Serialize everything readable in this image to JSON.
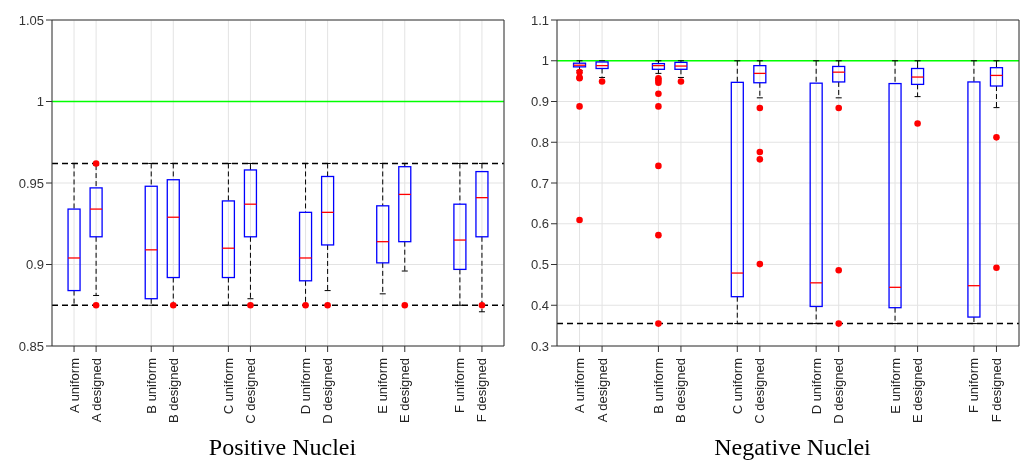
{
  "chart_data": [
    {
      "type": "box",
      "xlabel": "Positive Nuclei",
      "color": "#0000ff",
      "grid": true,
      "ylim": [
        0.85,
        1.05
      ],
      "yticks": [
        0.85,
        0.9,
        0.95,
        1,
        1.05
      ],
      "categories": [
        "A uniform",
        "A designed",
        "B uniform",
        "B designed",
        "C uniform",
        "C designed",
        "D uniform",
        "D designed",
        "E uniform",
        "E designed",
        "F uniform",
        "F designed"
      ],
      "boxes": [
        {
          "low": 0.875,
          "q1": 0.884,
          "median": 0.904,
          "q3": 0.934,
          "high": 0.962
        },
        {
          "low": 0.881,
          "q1": 0.917,
          "median": 0.934,
          "q3": 0.947,
          "high": 0.961,
          "outliers": [
            0.962,
            0.875
          ]
        },
        {
          "low": 0.875,
          "q1": 0.879,
          "median": 0.909,
          "q3": 0.948,
          "high": 0.962
        },
        {
          "low": 0.875,
          "q1": 0.892,
          "median": 0.929,
          "q3": 0.952,
          "high": 0.962,
          "outliers": [
            0.875
          ]
        },
        {
          "low": 0.875,
          "q1": 0.892,
          "median": 0.91,
          "q3": 0.939,
          "high": 0.962
        },
        {
          "low": 0.879,
          "q1": 0.917,
          "median": 0.937,
          "q3": 0.958,
          "high": 0.962,
          "outliers": [
            0.875
          ]
        },
        {
          "low": 0.875,
          "q1": 0.89,
          "median": 0.904,
          "q3": 0.932,
          "high": 0.962,
          "outliers": [
            0.875
          ]
        },
        {
          "low": 0.884,
          "q1": 0.912,
          "median": 0.932,
          "q3": 0.954,
          "high": 0.962,
          "outliers": [
            0.875
          ]
        },
        {
          "low": 0.882,
          "q1": 0.901,
          "median": 0.914,
          "q3": 0.936,
          "high": 0.962
        },
        {
          "low": 0.896,
          "q1": 0.914,
          "median": 0.943,
          "q3": 0.96,
          "high": 0.962,
          "outliers": [
            0.875
          ]
        },
        {
          "low": 0.875,
          "q1": 0.897,
          "median": 0.915,
          "q3": 0.937,
          "high": 0.962
        },
        {
          "low": 0.871,
          "q1": 0.917,
          "median": 0.941,
          "q3": 0.957,
          "high": 0.962,
          "outliers": [
            0.875
          ]
        }
      ],
      "ref_lines": [
        {
          "axis": "y",
          "value": 1,
          "color": "#00ff00",
          "line_style": "solid"
        },
        {
          "axis": "y",
          "value": 0.962,
          "color": "#000000",
          "line_style": "dashed"
        },
        {
          "axis": "y",
          "value": 0.875,
          "color": "#000000",
          "line_style": "dashed"
        }
      ]
    },
    {
      "type": "box",
      "xlabel": "Negative Nuclei",
      "color": "#0000ff",
      "grid": true,
      "ylim": [
        0.3,
        1.1
      ],
      "yticks": [
        0.3,
        0.4,
        0.5,
        0.6,
        0.7,
        0.8,
        0.9,
        1,
        1.1
      ],
      "categories": [
        "A uniform",
        "A designed",
        "B uniform",
        "B designed",
        "C uniform",
        "C designed",
        "D uniform",
        "D designed",
        "E uniform",
        "E designed",
        "F uniform",
        "F designed"
      ],
      "boxes": [
        {
          "low": 0.976,
          "q1": 0.985,
          "median": 0.989,
          "q3": 0.994,
          "high": 1,
          "outliers": [
            0.972,
            0.959,
            0.957,
            0.888,
            0.609
          ]
        },
        {
          "low": 0.959,
          "q1": 0.981,
          "median": 0.988,
          "q3": 0.997,
          "high": 1,
          "outliers": [
            0.949
          ]
        },
        {
          "low": 0.969,
          "q1": 0.979,
          "median": 0.988,
          "q3": 0.993,
          "high": 1,
          "outliers": [
            0.957,
            0.952,
            0.946,
            0.919,
            0.888,
            0.742,
            0.572,
            0.355
          ]
        },
        {
          "low": 0.959,
          "q1": 0.979,
          "median": 0.987,
          "q3": 0.996,
          "high": 1,
          "outliers": [
            0.949
          ]
        },
        {
          "low": 0.355,
          "q1": 0.421,
          "median": 0.479,
          "q3": 0.947,
          "high": 1
        },
        {
          "low": 0.909,
          "q1": 0.946,
          "median": 0.969,
          "q3": 0.988,
          "high": 1,
          "outliers": [
            0.884,
            0.776,
            0.758,
            0.501
          ]
        },
        {
          "low": 0.355,
          "q1": 0.397,
          "median": 0.455,
          "q3": 0.945,
          "high": 1
        },
        {
          "low": 0.909,
          "q1": 0.948,
          "median": 0.972,
          "q3": 0.986,
          "high": 1,
          "outliers": [
            0.884,
            0.486,
            0.355
          ]
        },
        {
          "low": 0.355,
          "q1": 0.394,
          "median": 0.444,
          "q3": 0.944,
          "high": 1
        },
        {
          "low": 0.912,
          "q1": 0.942,
          "median": 0.96,
          "q3": 0.981,
          "high": 1,
          "outliers": [
            0.846
          ]
        },
        {
          "low": 0.355,
          "q1": 0.371,
          "median": 0.448,
          "q3": 0.948,
          "high": 1
        },
        {
          "low": 0.885,
          "q1": 0.938,
          "median": 0.964,
          "q3": 0.983,
          "high": 1,
          "outliers": [
            0.812,
            0.492
          ]
        }
      ],
      "ref_lines": [
        {
          "axis": "y",
          "value": 1,
          "color": "#00ff00",
          "line_style": "solid"
        },
        {
          "axis": "y",
          "value": 0.355,
          "color": "#000000",
          "line_style": "dashed"
        }
      ]
    }
  ]
}
